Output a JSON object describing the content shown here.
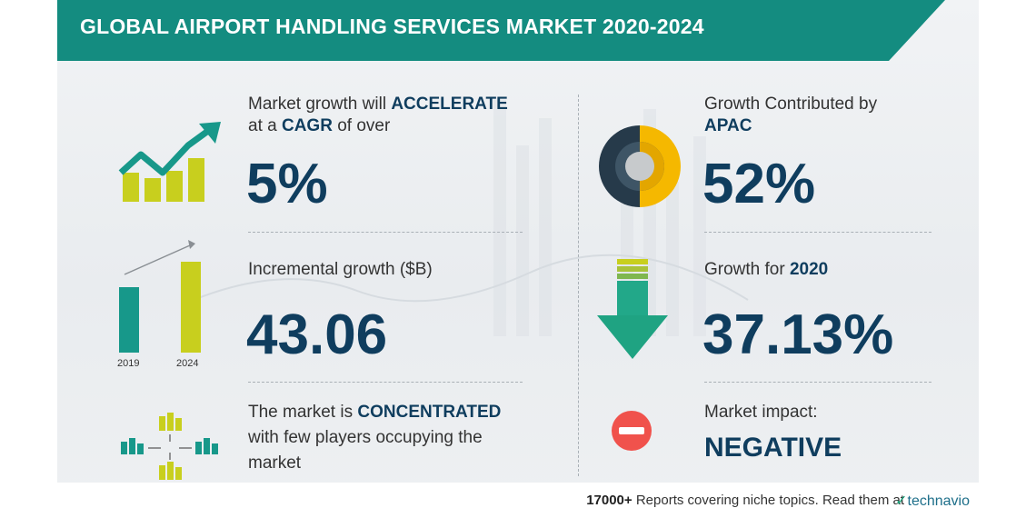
{
  "title": "GLOBAL AIRPORT HANDLING SERVICES MARKET 2020-2024",
  "stats": {
    "cagr": {
      "line1_pre": "Market growth will",
      "line1_strong": "ACCELERATE",
      "line2_pre": "at a",
      "line2_strong": "CAGR",
      "line2_post": "of over",
      "value": "5%",
      "icon": "growth-arrow-icon"
    },
    "apac": {
      "line1": "Growth Contributed by",
      "line2_strong": "APAC",
      "value": "52%",
      "icon": "donut-chart-icon",
      "icon_colors": [
        "#263a4a",
        "#f5b800"
      ]
    },
    "incremental": {
      "label": "Incremental growth ($B)",
      "value": "43.06",
      "icon": "bar-comparison-icon",
      "years": [
        "2019",
        "2024"
      ]
    },
    "yoy": {
      "label_pre": "Growth for",
      "label_strong": "2020",
      "value": "37.13%",
      "icon": "down-arrow-icon"
    },
    "concentration": {
      "line1_pre": "The market is",
      "line1_strong": "CONCENTRATED",
      "line2": "with few players occupying the",
      "line3": "market",
      "icon": "buildings-converge-icon"
    },
    "impact": {
      "label": "Market impact:",
      "value": "NEGATIVE",
      "icon": "minus-circle-icon"
    }
  },
  "footer": {
    "count": "17000+",
    "text": "Reports covering niche topics. Read them at",
    "brand": "technavio"
  },
  "colors": {
    "banner": "#148c80",
    "teal": "#17988a",
    "yellow_green": "#c8cf1e",
    "navy": "#0f3d5e",
    "yellow": "#f5b800",
    "red": "#f0524c",
    "green": "#22a889"
  }
}
